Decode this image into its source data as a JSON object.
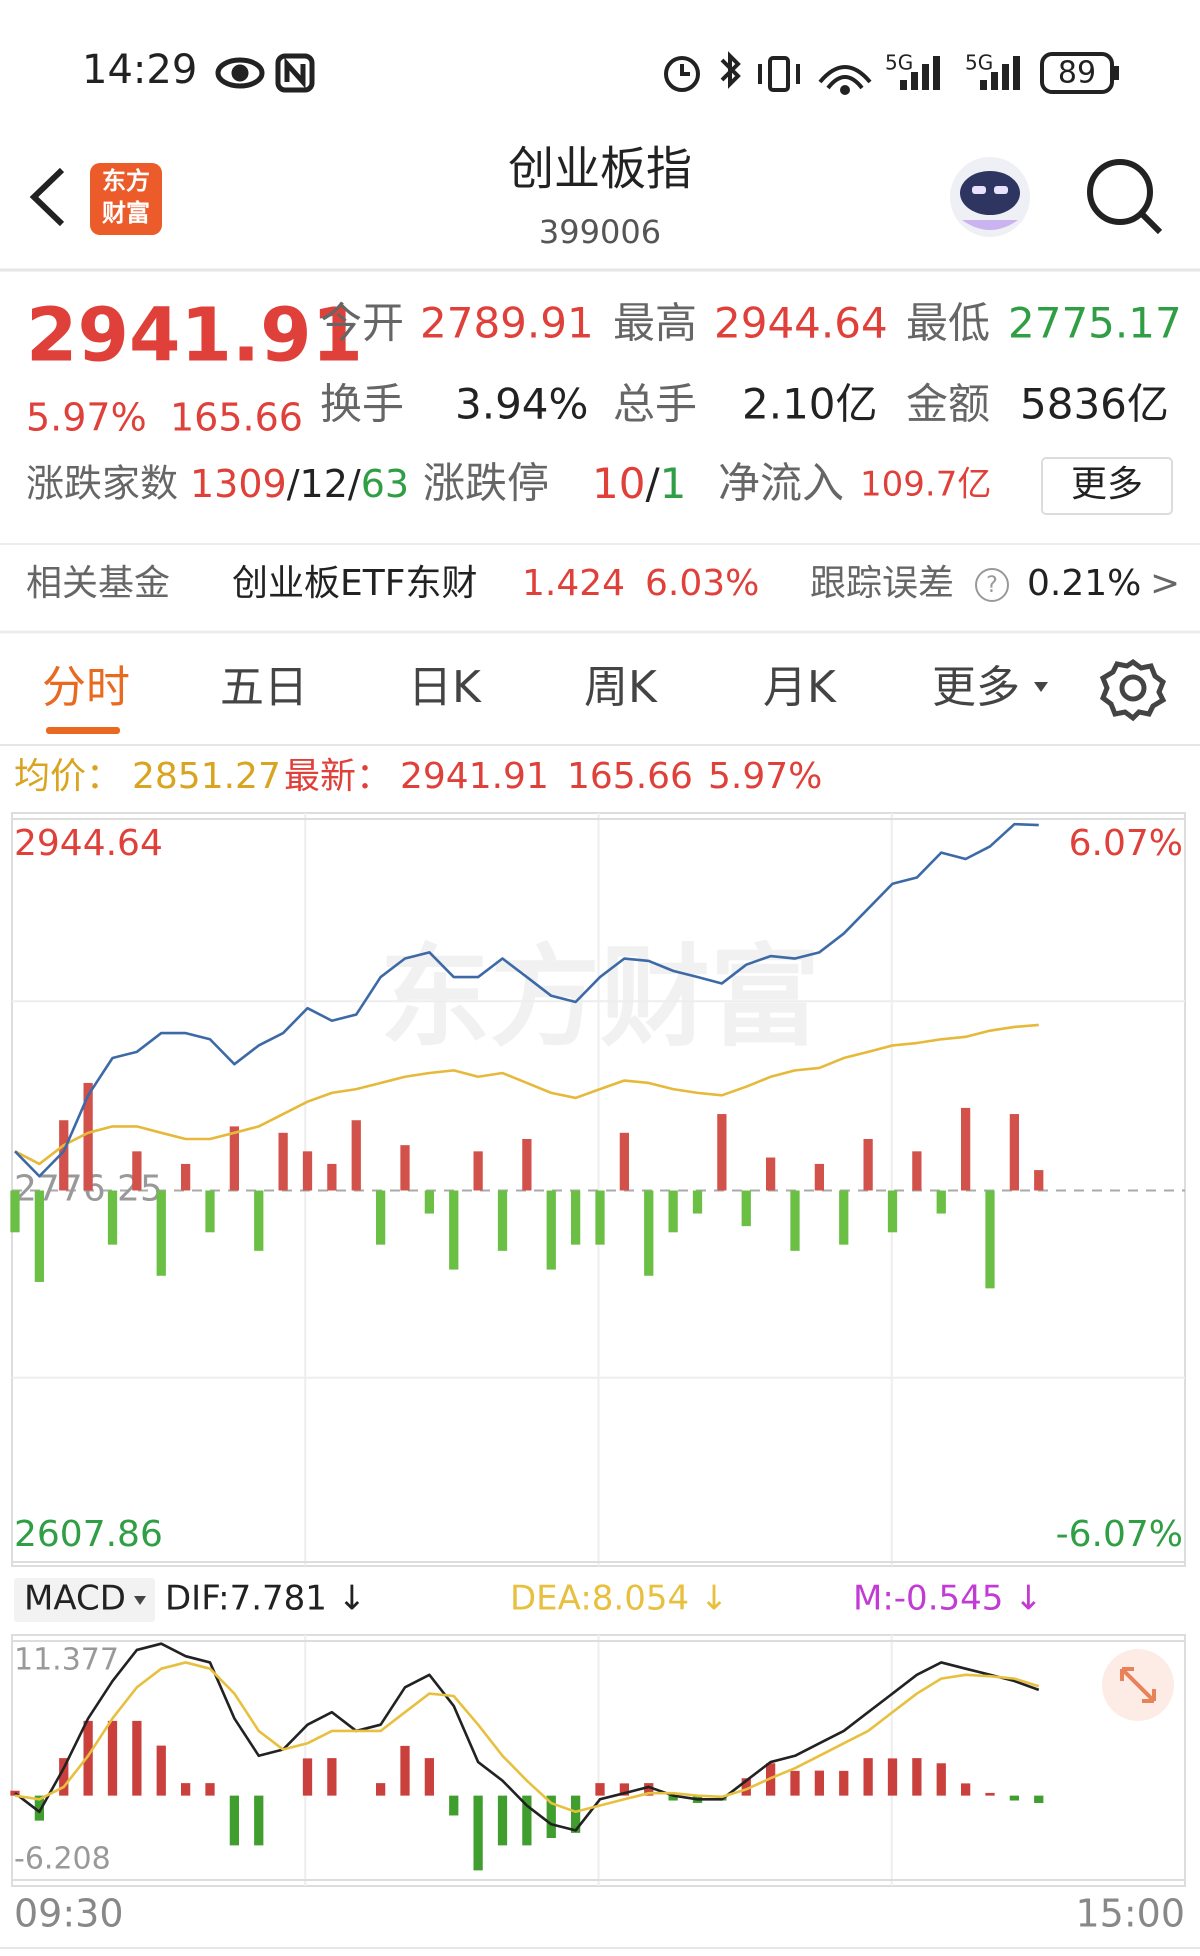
{
  "status_bar": {
    "time": "14:29",
    "battery": "89"
  },
  "header": {
    "logo": [
      "东方",
      "财富"
    ],
    "title": "创业板指",
    "code": "399006"
  },
  "quote": {
    "price": "2941.91",
    "change_pct": "5.97%",
    "change": "165.66",
    "stats": [
      {
        "label": "今开",
        "value": "2789.91"
      },
      {
        "label": "最高",
        "value": "2944.64"
      },
      {
        "label": "最低",
        "value": "2775.17"
      },
      {
        "label": "换手",
        "value": "3.94%"
      },
      {
        "label": "总手",
        "value": "2.10亿"
      },
      {
        "label": "金额",
        "value": "5836亿"
      }
    ],
    "breadth": {
      "label": "涨跌家数",
      "up": "1309",
      "sep": "/",
      "flat": "12",
      "down": "63"
    },
    "limit": {
      "label": "涨跌停",
      "up": "10",
      "sep": "/",
      "down": "1"
    },
    "inflow": {
      "label": "净流入",
      "value": "109.7亿"
    },
    "more": "更多"
  },
  "fund": {
    "label": "相关基金",
    "name": "创业板ETF东财",
    "price": "1.424",
    "change_pct": "6.03%",
    "tracking_label": "跟踪误差",
    "help": "?",
    "tracking_error": "0.21%",
    "arrow": ">"
  },
  "tabs": [
    "分时",
    "五日",
    "日K",
    "周K",
    "月K",
    "更多"
  ],
  "info_bar": {
    "avg_label": "均价：",
    "avg": "2851.27",
    "last_label": "最新：",
    "last": "2941.91",
    "change": "165.66",
    "change_pct": "5.97%"
  },
  "watermark": "东方财富",
  "time_labels": [
    "09:30",
    "15:00"
  ],
  "chart_data": [
    {
      "type": "line",
      "ylim": [
        2607.86,
        2944.64
      ],
      "yticks": [
        2944.64,
        2776.25,
        2607.86
      ],
      "y2lim": [
        -6.07,
        6.07
      ],
      "y2ticks": [
        {
          "value": 6.07,
          "label": "6.07%"
        },
        {
          "value": -6.07,
          "label": "-6.07%"
        }
      ],
      "baseline": 2776.25,
      "series": [
        {
          "type": "bar",
          "up_color": "#d2514b",
          "down_color": "#6cbf45",
          "values": [
            2757.3,
            2734.8,
            2808.1,
            2825.0,
            2751.7,
            2794.0,
            2737.6,
            2788.3,
            2757.3,
            2805.3,
            2748.9,
            2802.4,
            2794.0,
            2788.3,
            2808.1,
            2751.7,
            2796.8,
            2765.8,
            2740.4,
            2794.0,
            2748.9,
            2799.6,
            2740.4,
            2751.7,
            2751.7,
            2802.4,
            2737.6,
            2757.3,
            2765.8,
            2810.9,
            2760.1,
            2791.2,
            2748.9,
            2788.3,
            2751.7,
            2799.6,
            2757.3,
            2794.0,
            2765.8,
            2813.7,
            2731.9,
            2810.9,
            2785.5
          ]
        },
        {
          "type": "line",
          "color": "#e6b93a",
          "values": [
            2794.0,
            2788.3,
            2796.8,
            2802.4,
            2805.3,
            2805.3,
            2802.4,
            2799.6,
            2799.6,
            2802.4,
            2805.3,
            2810.9,
            2816.5,
            2820.5,
            2822.2,
            2825.0,
            2827.8,
            2829.5,
            2830.7,
            2827.8,
            2829.5,
            2825.0,
            2820.5,
            2818.2,
            2822.2,
            2826.1,
            2825.0,
            2822.2,
            2820.5,
            2819.4,
            2823.3,
            2827.8,
            2830.7,
            2831.8,
            2836.3,
            2839.1,
            2842.0,
            2843.1,
            2844.8,
            2845.9,
            2848.7,
            2850.4,
            2851.3
          ]
        },
        {
          "type": "line",
          "color": "#3d6aa6",
          "values": [
            2794.0,
            2782.7,
            2794.0,
            2819.4,
            2836.3,
            2839.1,
            2847.6,
            2847.6,
            2844.8,
            2833.5,
            2842.0,
            2847.6,
            2858.9,
            2853.2,
            2856.0,
            2873.0,
            2881.4,
            2884.2,
            2873.0,
            2873.0,
            2881.4,
            2873.0,
            2864.5,
            2861.7,
            2873.0,
            2881.4,
            2880.3,
            2875.8,
            2873.0,
            2870.1,
            2878.6,
            2882.5,
            2881.4,
            2884.2,
            2892.7,
            2904.0,
            2915.3,
            2918.1,
            2929.4,
            2926.5,
            2932.2,
            2942.3,
            2941.9
          ]
        }
      ]
    },
    {
      "type": "line",
      "selector": "MACD",
      "ylim": [
        -6.208,
        11.377
      ],
      "yticks": [
        11.377,
        -6.208
      ],
      "baseline": 0,
      "series": [
        {
          "type": "bar",
          "name": "M:-0.545 ↓",
          "legend_color": "#c23bd4",
          "up_color": "#c9403c",
          "down_color": "#3f9e2e",
          "values": [
            0.36,
            -1.84,
            2.76,
            5.5,
            5.5,
            5.5,
            3.68,
            0.92,
            0.92,
            -3.66,
            -3.66,
            0,
            2.74,
            2.76,
            0,
            0.92,
            3.66,
            2.76,
            -1.46,
            -5.5,
            -3.66,
            -3.66,
            -3.12,
            -2.74,
            0.92,
            0.9,
            0.92,
            -0.36,
            -0.54,
            -0.36,
            1.28,
            2.38,
            1.82,
            1.84,
            1.82,
            2.76,
            2.74,
            2.76,
            2.38,
            0.9,
            0.2,
            -0.36,
            -0.545
          ]
        },
        {
          "type": "line",
          "name": "DIF:7.781 ↓",
          "color": "#222222",
          "values": [
            0.18,
            -1.19,
            2.02,
            5.68,
            8.43,
            10.72,
            11.18,
            10.26,
            9.8,
            5.68,
            2.93,
            3.39,
            5.22,
            6.14,
            4.76,
            5.22,
            7.97,
            8.89,
            6.6,
            2.47,
            1.1,
            -0.73,
            -2.11,
            -2.56,
            -0.27,
            0.18,
            0.64,
            0,
            -0.27,
            -0.27,
            1.1,
            2.47,
            2.93,
            3.85,
            4.76,
            6.14,
            7.51,
            8.89,
            9.8,
            9.34,
            8.89,
            8.43,
            7.78
          ]
        },
        {
          "type": "line",
          "name": "DEA:8.054 ↓",
          "color": "#e8c040",
          "values": [
            0,
            -0.27,
            0.64,
            2.93,
            5.68,
            7.97,
            9.34,
            9.8,
            9.34,
            7.51,
            4.76,
            3.39,
            3.85,
            4.76,
            4.76,
            4.76,
            6.14,
            7.51,
            7.33,
            5.22,
            2.93,
            1.1,
            -0.55,
            -1.19,
            -0.73,
            -0.27,
            0.18,
            0.18,
            0,
            -0.09,
            0.46,
            1.28,
            2.02,
            2.93,
            3.85,
            4.76,
            6.14,
            7.51,
            8.61,
            8.89,
            8.79,
            8.61,
            8.05
          ]
        }
      ]
    }
  ]
}
